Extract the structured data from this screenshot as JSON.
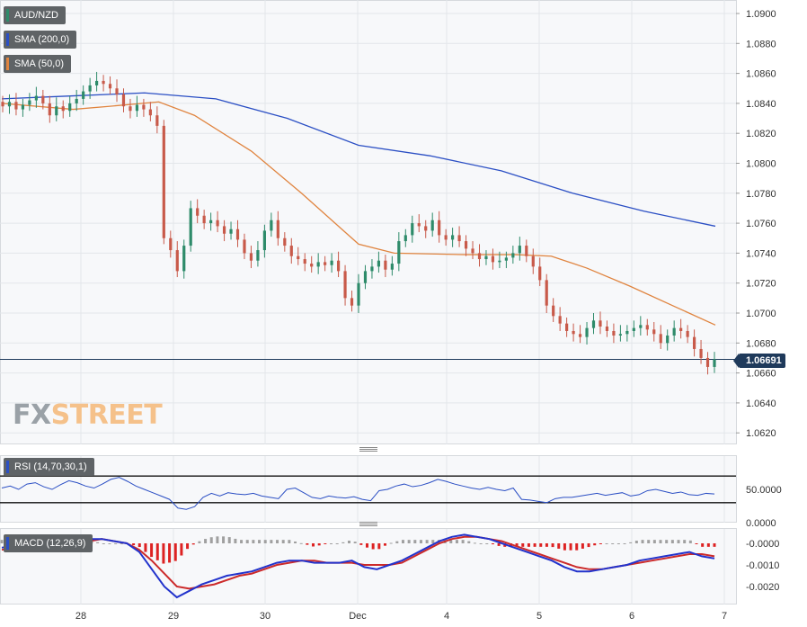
{
  "pair_label": "AUD/NZD",
  "indicators": {
    "sma200_label": "SMA (200,0)",
    "sma50_label": "SMA (50,0)",
    "rsi_label": "RSI (14,70,30,1)",
    "macd_label": "MACD (12,26,9)"
  },
  "current_price": "1.06691",
  "logo": {
    "fx": "FX",
    "street": "STREET"
  },
  "colors": {
    "bull": "#2e8b6a",
    "bear": "#c85a4a",
    "sma200": "#2b4fc4",
    "sma50": "#e0843f",
    "rsi_line": "#2b4fc4",
    "macd_line": "#2233cc",
    "signal_line": "#cc2a2a",
    "hist_pos": "#a0a0a0",
    "hist_neg": "#dd2222"
  },
  "chart_data": [
    {
      "type": "candlestick",
      "title": "AUD/NZD",
      "x_ticks": [
        "28",
        "29",
        "30",
        "Dec",
        "4",
        "5",
        "6",
        "7"
      ],
      "y_ticks": [
        "1.0900",
        "1.0880",
        "1.0860",
        "1.0840",
        "1.0820",
        "1.0800",
        "1.0780",
        "1.0760",
        "1.0740",
        "1.0720",
        "1.0700",
        "1.0680",
        "1.0660",
        "1.0640",
        "1.0620"
      ],
      "ylim": [
        1.061,
        1.0908
      ],
      "current_price": 1.06691,
      "close_series": [
        1.0838,
        1.0841,
        1.0836,
        1.0839,
        1.0842,
        1.0845,
        1.084,
        1.0832,
        1.0838,
        1.0835,
        1.084,
        1.0843,
        1.0848,
        1.0852,
        1.0855,
        1.0853,
        1.085,
        1.0846,
        1.0838,
        1.0835,
        1.0839,
        1.0836,
        1.0832,
        1.0825,
        1.075,
        1.0742,
        1.0728,
        1.0745,
        1.077,
        1.0765,
        1.076,
        1.0762,
        1.0758,
        1.0753,
        1.0756,
        1.0749,
        1.074,
        1.0735,
        1.0742,
        1.0755,
        1.0762,
        1.075,
        1.0745,
        1.0738,
        1.0736,
        1.0733,
        1.0731,
        1.0734,
        1.0732,
        1.0735,
        1.0728,
        1.071,
        1.0705,
        1.072,
        1.0728,
        1.0731,
        1.0735,
        1.0729,
        1.0733,
        1.0748,
        1.0752,
        1.076,
        1.0758,
        1.0755,
        1.0762,
        1.0752,
        1.0749,
        1.0752,
        1.0748,
        1.0743,
        1.074,
        1.0736,
        1.0738,
        1.0734,
        1.0735,
        1.0737,
        1.074,
        1.0745,
        1.0738,
        1.0731,
        1.0722,
        1.0705,
        1.0698,
        1.0693,
        1.0688,
        1.0686,
        1.0684,
        1.069,
        1.0695,
        1.0691,
        1.0688,
        1.0685,
        1.0686,
        1.0688,
        1.069,
        1.0692,
        1.0689,
        1.0686,
        1.068,
        1.0685,
        1.069,
        1.0688,
        1.0684,
        1.0676,
        1.067,
        1.0664,
        1.06691
      ],
      "series": [
        {
          "name": "SMA (200,0)",
          "points": [
            [
              0,
              1.0843
            ],
            [
              0.1,
              1.0845
            ],
            [
              0.2,
              1.0847
            ],
            [
              0.3,
              1.0843
            ],
            [
              0.4,
              1.083
            ],
            [
              0.5,
              1.0812
            ],
            [
              0.6,
              1.0805
            ],
            [
              0.7,
              1.0795
            ],
            [
              0.8,
              1.078
            ],
            [
              0.9,
              1.0768
            ],
            [
              1.0,
              1.0758
            ]
          ]
        },
        {
          "name": "SMA (50,0)",
          "points": [
            [
              0,
              1.084
            ],
            [
              0.1,
              1.0836
            ],
            [
              0.15,
              1.0838
            ],
            [
              0.22,
              1.0841
            ],
            [
              0.27,
              1.0832
            ],
            [
              0.35,
              1.0808
            ],
            [
              0.42,
              1.078
            ],
            [
              0.5,
              1.0746
            ],
            [
              0.55,
              1.074
            ],
            [
              0.65,
              1.0739
            ],
            [
              0.72,
              1.0739
            ],
            [
              0.77,
              1.0738
            ],
            [
              0.82,
              1.073
            ],
            [
              0.88,
              1.0718
            ],
            [
              0.94,
              1.0705
            ],
            [
              1.0,
              1.0692
            ]
          ]
        }
      ]
    },
    {
      "type": "line",
      "title": "RSI (14,70,30,1)",
      "y_ticks": [
        "50.0000",
        "0.0000"
      ],
      "levels": [
        70,
        30
      ],
      "ylim": [
        0,
        100
      ],
      "values": [
        52,
        55,
        50,
        58,
        60,
        54,
        50,
        57,
        63,
        60,
        55,
        52,
        58,
        65,
        68,
        62,
        55,
        50,
        45,
        40,
        35,
        22,
        20,
        24,
        38,
        44,
        40,
        45,
        43,
        42,
        44,
        40,
        38,
        36,
        50,
        52,
        45,
        38,
        36,
        40,
        38,
        37,
        39,
        35,
        33,
        48,
        50,
        55,
        58,
        54,
        56,
        60,
        65,
        62,
        58,
        55,
        52,
        50,
        53,
        50,
        48,
        52,
        35,
        34,
        32,
        30,
        36,
        38,
        38,
        40,
        42,
        44,
        41,
        43,
        45,
        40,
        42,
        48,
        50,
        47,
        44,
        46,
        42,
        41,
        44,
        43
      ]
    },
    {
      "type": "line",
      "title": "MACD (12,26,9)",
      "y_ticks": [
        "-0.0000",
        "-0.0010",
        "-0.0020"
      ],
      "ylim": [
        -0.0026,
        0.0006
      ],
      "macd": [
        -0.0002,
        -0.0001,
        -0.0001,
        -0.0,
        0.0,
        0.0001,
        0.0001,
        0.0002,
        0.0002,
        0.0001,
        0.0,
        -0.0004,
        -0.0012,
        -0.002,
        -0.0025,
        -0.0022,
        -0.0019,
        -0.0017,
        -0.0015,
        -0.0014,
        -0.0013,
        -0.0011,
        -0.0009,
        -0.0008,
        -0.0008,
        -0.0009,
        -0.0009,
        -0.0009,
        -0.0008,
        -0.0011,
        -0.0012,
        -0.001,
        -0.0008,
        -0.0005,
        -0.0002,
        0.0001,
        0.0003,
        0.0004,
        0.0003,
        0.0002,
        0.0,
        -0.0002,
        -0.0004,
        -0.0006,
        -0.0008,
        -0.0011,
        -0.0013,
        -0.0013,
        -0.0012,
        -0.0011,
        -0.001,
        -0.0008,
        -0.0007,
        -0.0006,
        -0.0005,
        -0.0004,
        -0.0006,
        -0.0007
      ],
      "signal": [
        -0.0003,
        -0.0002,
        -0.0001,
        -0.0001,
        0.0,
        0.0,
        0.0001,
        0.0001,
        0.0002,
        0.0001,
        0.0,
        -0.0003,
        -0.0008,
        -0.0014,
        -0.002,
        -0.0021,
        -0.002,
        -0.0019,
        -0.0017,
        -0.0015,
        -0.0014,
        -0.0012,
        -0.001,
        -0.0009,
        -0.0008,
        -0.0008,
        -0.0009,
        -0.0009,
        -0.0009,
        -0.001,
        -0.001,
        -0.001,
        -0.0009,
        -0.0006,
        -0.0003,
        0.0,
        0.0002,
        0.0003,
        0.0003,
        0.0002,
        0.0001,
        -0.0001,
        -0.0003,
        -0.0005,
        -0.0007,
        -0.0009,
        -0.0011,
        -0.0012,
        -0.0012,
        -0.0011,
        -0.001,
        -0.0009,
        -0.0008,
        -0.0007,
        -0.0006,
        -0.0005,
        -0.0005,
        -0.0006
      ]
    }
  ]
}
